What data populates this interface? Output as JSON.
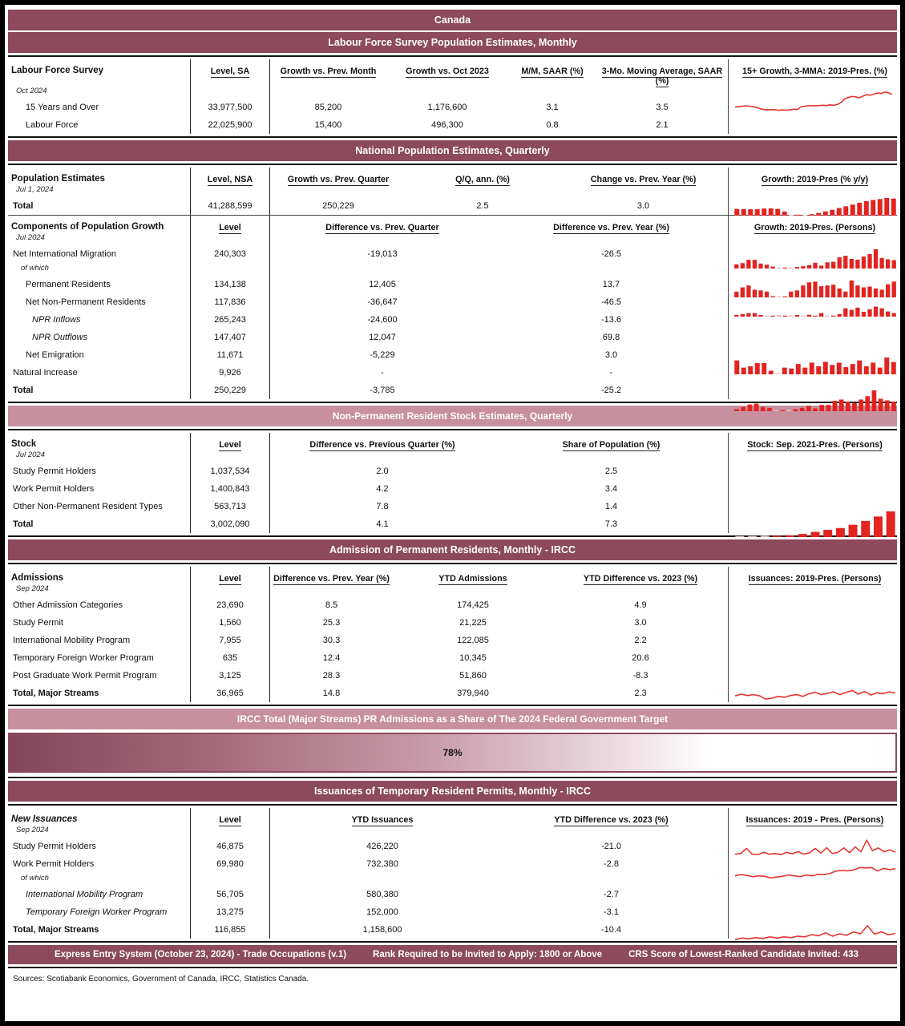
{
  "title": "Canada",
  "colors": {
    "header_maroon": "#8C4A5C",
    "header_pink": "#C8909F",
    "bar_red": "#E2231F",
    "bar_pink": "#F3B8BC",
    "line_red": "#E8352E"
  },
  "sections": {
    "lfs": {
      "header": "Labour Force Survey Population Estimates, Monthly",
      "table_title": "Labour Force Survey",
      "date": "Oct 2024",
      "columns": [
        "Level, SA",
        "Growth vs. Prev. Month",
        "Growth vs. Oct 2023",
        "M/M, SAAR (%)",
        "3-Mo. Moving Average, SAAR (%)"
      ],
      "chart_title": "15+ Growth, 3-MMA: 2019-Pres. (%)",
      "rows": [
        {
          "label": "15 Years and Over",
          "values": [
            "33,977,500",
            "85,200",
            "1,176,600",
            "3.1",
            "3.5"
          ]
        },
        {
          "label": "Labour Force",
          "values": [
            "22,025,900",
            "15,400",
            "496,300",
            "0.8",
            "2.1"
          ]
        }
      ]
    },
    "population": {
      "header": "National Population Estimates, Quarterly",
      "table_title": "Population Estimates",
      "date": "Jul 1, 2024",
      "columns": [
        "Level, NSA",
        "Growth vs. Prev. Quarter",
        "Q/Q, ann. (%)",
        "Change vs. Prev. Year (%)"
      ],
      "chart_title": "Growth: 2019-Pres (% y/y)",
      "rows": [
        {
          "label": "Total",
          "values": [
            "41,288,599",
            "250,229",
            "2.5",
            "3.0"
          ]
        }
      ]
    },
    "components": {
      "table_title": "Components of Population Growth",
      "date": "Jul 2024",
      "note": "of which",
      "columns": [
        "Level",
        "Difference vs. Prev. Quarter",
        "Difference vs. Prev. Year (%)"
      ],
      "chart_title": "Growth: 2019-Pres. (Persons)",
      "rows": [
        {
          "label": "Net International Migration",
          "values": [
            "240,303",
            "-19,013",
            "-26.5"
          ]
        },
        {
          "label": "Permanent Residents",
          "values": [
            "134,138",
            "12,405",
            "13.7"
          ]
        },
        {
          "label": "Net Non-Permanent Residents",
          "values": [
            "117,836",
            "-36,647",
            "-46.5"
          ]
        },
        {
          "label": "NPR Inflows",
          "values": [
            "265,243",
            "-24,600",
            "-13.6"
          ]
        },
        {
          "label": "NPR Outflows",
          "values": [
            "147,407",
            "12,047",
            "69.8"
          ]
        },
        {
          "label": "Net Emigration",
          "values": [
            "11,671",
            "-5,229",
            "3.0"
          ]
        },
        {
          "label": "Natural Increase",
          "values": [
            "9,926",
            "-",
            "-"
          ]
        },
        {
          "label": "Total",
          "values": [
            "250,229",
            "-3,785",
            "-25.2"
          ]
        }
      ]
    },
    "npr_stock": {
      "header": "Non-Permanent Resident Stock Estimates, Quarterly",
      "table_title": "Stock",
      "date": "Jul 2024",
      "columns": [
        "Level",
        "Difference vs. Previous Quarter (%)",
        "Share of Population (%)"
      ],
      "chart_title": "Stock: Sep. 2021-Pres. (Persons)",
      "rows": [
        {
          "label": "Study Permit Holders",
          "values": [
            "1,037,534",
            "2.0",
            "2.5"
          ]
        },
        {
          "label": "Work Permit Holders",
          "values": [
            "1,400,843",
            "4.2",
            "3.4"
          ]
        },
        {
          "label": "Other Non-Permanent Resident Types",
          "values": [
            "563,713",
            "7.8",
            "1.4"
          ]
        },
        {
          "label": "Total",
          "values": [
            "3,002,090",
            "4.1",
            "7.3"
          ]
        }
      ]
    },
    "admissions": {
      "header": "Admission of Permanent Residents, Monthly - IRCC",
      "table_title": "Admissions",
      "date": "Sep 2024",
      "columns": [
        "Level",
        "Difference vs. Prev. Year (%)",
        "YTD Admissions",
        "YTD Difference vs. 2023 (%)"
      ],
      "chart_title": "Issuances: 2019-Pres. (Persons)",
      "rows": [
        {
          "label": "Other Admission Categories",
          "values": [
            "23,690",
            "8.5",
            "174,425",
            "4.9"
          ]
        },
        {
          "label": "Study Permit",
          "values": [
            "1,560",
            "25.3",
            "21,225",
            "3.0"
          ]
        },
        {
          "label": "International Mobility Program",
          "values": [
            "7,955",
            "30.3",
            "122,085",
            "2.2"
          ]
        },
        {
          "label": "Temporary Foreign Worker Program",
          "values": [
            "635",
            "12.4",
            "10,345",
            "20.6"
          ]
        },
        {
          "label": "Post Graduate Work Permit Program",
          "values": [
            "3,125",
            "28.3",
            "51,860",
            "-8.3"
          ]
        },
        {
          "label": "Total, Major Streams",
          "values": [
            "36,965",
            "14.8",
            "379,940",
            "2.3"
          ]
        }
      ]
    },
    "target": {
      "header": "IRCC Total (Major Streams) PR Admissions as a Share of The 2024 Federal Government Target",
      "progress_label": "78%",
      "progress_pct": 78
    },
    "issuances": {
      "header": "Issuances of Temporary Resident Permits, Monthly - IRCC",
      "table_title": "New Issuances",
      "date": "Sep 2024",
      "note": "of which",
      "columns": [
        "Level",
        "YTD Issuances",
        "YTD Difference vs. 2023 (%)"
      ],
      "chart_title": "Issuances: 2019 - Pres. (Persons)",
      "rows": [
        {
          "label": "Study Permit Holders",
          "values": [
            "46,875",
            "426,220",
            "-21.0"
          ]
        },
        {
          "label": "Work Permit Holders",
          "values": [
            "69,980",
            "732,380",
            "-2.8"
          ]
        },
        {
          "label": "International Mobility Program",
          "values": [
            "56,705",
            "580,380",
            "-2.7"
          ]
        },
        {
          "label": "Temporary Foreign Worker Program",
          "values": [
            "13,275",
            "152,000",
            "-3.1"
          ]
        },
        {
          "label": "Total, Major Streams",
          "values": [
            "116,855",
            "1,158,600",
            "-10.4"
          ]
        }
      ]
    },
    "express_entry": {
      "program": "Express Entry System (October 23, 2024) - Trade Occupations (v.1)",
      "rank": "Rank Required to be Invited to Apply: 1800 or Above",
      "crs": "CRS Score of Lowest-Ranked Candidate Invited: 433"
    },
    "sources": "Sources: Scotiabank Economics, Government of Canada, IRCC, Statistics Canada."
  },
  "chart_data": [
    {
      "id": "lfs_15plus_growth",
      "type": "line",
      "title": "15+ Growth, 3-MMA: 2019-Pres. (%)",
      "values": [
        0.42,
        0.43,
        0.44,
        0.45,
        0.44,
        0.43,
        0.4,
        0.36,
        0.34,
        0.33,
        0.34,
        0.33,
        0.32,
        0.33,
        0.32,
        0.33,
        0.35,
        0.34,
        0.42,
        0.44,
        0.45,
        0.46,
        0.45,
        0.46,
        0.47,
        0.46,
        0.48,
        0.47,
        0.49,
        0.55,
        0.66,
        0.7,
        0.73,
        0.72,
        0.69,
        0.74,
        0.78,
        0.77,
        0.8,
        0.83,
        0.82,
        0.86,
        0.84,
        0.79
      ]
    },
    {
      "id": "population_growth",
      "type": "bar",
      "title": "Growth: 2019-Pres (% y/y)",
      "values": [
        0.38,
        0.37,
        0.36,
        0.36,
        0.4,
        0.41,
        0.38,
        0.23,
        -0.06,
        0.05,
        -0.04,
        0.08,
        0.15,
        0.24,
        0.33,
        0.43,
        0.53,
        0.63,
        0.73,
        0.82,
        0.89,
        0.94,
        1.0,
        0.97
      ]
    },
    {
      "id": "nim_growth",
      "type": "bar",
      "title": "Growth: 2019-Pres. (Persons)",
      "values": [
        0.22,
        0.28,
        0.45,
        0.45,
        0.26,
        0.2,
        0.1,
        -0.05,
        0.05,
        -0.04,
        0.08,
        0.12,
        0.18,
        0.3,
        0.15,
        0.32,
        0.35,
        0.58,
        0.66,
        0.5,
        0.46,
        0.62,
        0.75,
        1.0,
        0.55,
        0.48,
        0.44
      ]
    },
    {
      "id": "pr_growth",
      "type": "bar",
      "title": "Growth: 2019-Pres. (Persons)",
      "values": [
        0.3,
        0.52,
        0.62,
        0.4,
        0.36,
        0.3,
        0.06,
        -0.05,
        0.05,
        0.3,
        0.36,
        0.62,
        0.78,
        0.82,
        0.58,
        0.62,
        0.66,
        0.46,
        0.3,
        0.88,
        0.62,
        0.52,
        0.56,
        0.46,
        0.4,
        0.68,
        0.82
      ]
    },
    {
      "id": "nnpr_growth",
      "type": "bar",
      "title": "Growth: 2019-Pres. (Persons)",
      "values": [
        0.1,
        0.16,
        0.22,
        0.22,
        0.1,
        -0.06,
        0.06,
        -0.1,
        0.06,
        -0.08,
        0.1,
        -0.06,
        0.12,
        0.06,
        0.22,
        -0.05,
        0.06,
        0.16,
        0.52,
        0.42,
        0.56,
        0.3,
        0.46,
        0.62,
        0.52,
        0.32,
        0.22
      ]
    },
    {
      "id": "net_emigration_growth",
      "type": "bar",
      "title": "Growth: 2019-Pres. (Persons)",
      "values": [
        0.62,
        0.3,
        0.36,
        0.5,
        0.5,
        0.16,
        -0.03,
        0.3,
        0.26,
        0.46,
        0.3,
        0.52,
        0.36,
        0.56,
        0.42,
        0.52,
        0.32,
        0.46,
        0.62,
        0.36,
        0.52,
        0.3,
        0.75,
        0.55
      ]
    },
    {
      "id": "components_total_growth",
      "type": "bar",
      "title": "Growth: 2019-Pres. (Persons)",
      "values": [
        0.1,
        0.2,
        0.32,
        0.36,
        0.2,
        0.16,
        -0.05,
        0.04,
        -0.06,
        0.1,
        0.16,
        0.26,
        0.14,
        0.3,
        0.3,
        0.5,
        0.56,
        0.46,
        0.4,
        0.56,
        0.72,
        1.0,
        0.6,
        0.52,
        0.46
      ]
    },
    {
      "id": "npr_stock",
      "type": "bar",
      "title": "Stock: Sep. 2021-Pres. (Persons)",
      "values": [
        -0.03,
        -0.04,
        -0.05,
        0.05,
        0.07,
        0.12,
        0.2,
        0.28,
        0.35,
        0.48,
        0.63,
        0.8,
        1.0
      ]
    },
    {
      "id": "admissions_total",
      "type": "line",
      "title": "Issuances: 2019-Pres. (Persons)",
      "values": [
        0.42,
        0.5,
        0.44,
        0.48,
        0.42,
        0.28,
        0.32,
        0.4,
        0.36,
        0.44,
        0.48,
        0.4,
        0.52,
        0.58,
        0.48,
        0.54,
        0.6,
        0.48,
        0.58,
        0.66,
        0.5,
        0.62,
        0.46,
        0.56,
        0.52,
        0.6,
        0.55
      ]
    },
    {
      "id": "issuance_study",
      "type": "line",
      "title": "Issuances: 2019 - Pres. (Persons)",
      "values": [
        0.22,
        0.26,
        0.52,
        0.22,
        0.2,
        0.32,
        0.22,
        0.26,
        0.2,
        0.32,
        0.24,
        0.36,
        0.22,
        0.3,
        0.52,
        0.28,
        0.56,
        0.26,
        0.32,
        0.55,
        0.3,
        0.6,
        0.35,
        0.95,
        0.4,
        0.55,
        0.35,
        0.45,
        0.32
      ]
    },
    {
      "id": "issuance_work",
      "type": "line",
      "title": "Issuances: 2019 - Pres. (Persons)",
      "values": [
        0.32,
        0.38,
        0.34,
        0.28,
        0.32,
        0.3,
        0.22,
        0.26,
        0.3,
        0.36,
        0.32,
        0.28,
        0.36,
        0.32,
        0.4,
        0.38,
        0.44,
        0.55,
        0.58,
        0.56,
        0.6,
        0.72,
        0.7,
        0.72,
        0.55,
        0.68,
        0.62,
        0.66
      ]
    },
    {
      "id": "issuance_total",
      "type": "line",
      "title": "Issuances: 2019 - Pres. (Persons)",
      "values": [
        0.2,
        0.28,
        0.24,
        0.3,
        0.26,
        0.34,
        0.28,
        0.34,
        0.3,
        0.38,
        0.34,
        0.46,
        0.4,
        0.55,
        0.38,
        0.5,
        0.42,
        0.6,
        0.5,
        0.92,
        0.48,
        0.6,
        0.45,
        0.52
      ]
    }
  ]
}
